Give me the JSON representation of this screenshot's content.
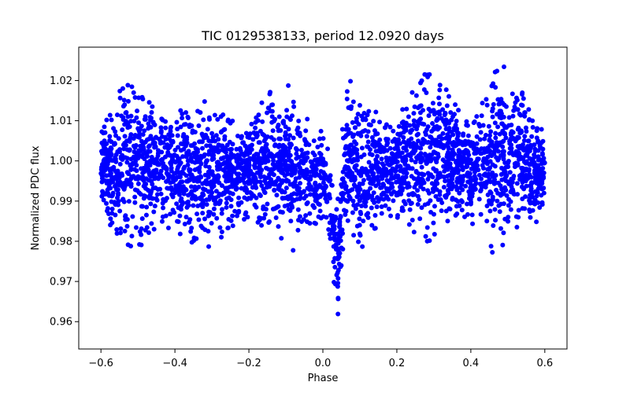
{
  "chart_data": {
    "type": "scatter",
    "title": "TIC 0129538133, period 12.0920 days",
    "xlabel": "Phase",
    "ylabel": "Normalized PDC flux",
    "xlim": [
      -0.66,
      0.66
    ],
    "ylim": [
      0.9532,
      1.0283
    ],
    "xticks": [
      -0.6,
      -0.4,
      -0.2,
      0.0,
      0.2,
      0.4,
      0.6
    ],
    "xtick_labels": [
      "−0.6",
      "−0.4",
      "−0.2",
      "0.0",
      "0.2",
      "0.4",
      "0.6"
    ],
    "yticks": [
      0.96,
      0.97,
      0.98,
      0.99,
      1.0,
      1.01,
      1.02
    ],
    "ytick_labels": [
      "0.96",
      "0.97",
      "0.98",
      "0.99",
      "1.00",
      "1.01",
      "1.02"
    ],
    "grid": false,
    "marker_color": "#0000ff",
    "series": [
      {
        "envelope": {
          "x": [
            -0.6,
            -0.58,
            -0.56,
            -0.54,
            -0.52,
            -0.5,
            -0.48,
            -0.46,
            -0.44,
            -0.42,
            -0.4,
            -0.38,
            -0.36,
            -0.34,
            -0.32,
            -0.3,
            -0.28,
            -0.26,
            -0.24,
            -0.22,
            -0.2,
            -0.18,
            -0.16,
            -0.14,
            -0.12,
            -0.1,
            -0.08,
            -0.06,
            -0.04,
            -0.02,
            0.0,
            0.02,
            0.04,
            0.06,
            0.08,
            0.1,
            0.12,
            0.14,
            0.16,
            0.18,
            0.2,
            0.22,
            0.24,
            0.26,
            0.28,
            0.3,
            0.32,
            0.34,
            0.36,
            0.38,
            0.4,
            0.42,
            0.44,
            0.46,
            0.48,
            0.5,
            0.52,
            0.54,
            0.56,
            0.58,
            0.6
          ],
          "y_low": [
            0.992,
            0.985,
            0.978,
            0.978,
            0.978,
            0.978,
            0.98,
            0.982,
            0.984,
            0.983,
            0.982,
            0.979,
            0.976,
            0.976,
            0.977,
            0.978,
            0.98,
            0.982,
            0.984,
            0.985,
            0.986,
            0.985,
            0.983,
            0.98,
            0.978,
            0.977,
            0.977,
            0.978,
            0.98,
            0.983,
            0.986,
            0.978,
            0.958,
            0.982,
            0.978,
            0.977,
            0.979,
            0.982,
            0.984,
            0.985,
            0.986,
            0.984,
            0.982,
            0.98,
            0.979,
            0.98,
            0.982,
            0.984,
            0.986,
            0.985,
            0.984,
            0.982,
            0.979,
            0.977,
            0.977,
            0.978,
            0.98,
            0.982,
            0.983,
            0.984,
            0.986
          ],
          "y_high": [
            1.007,
            1.012,
            1.016,
            1.019,
            1.025,
            1.022,
            1.02,
            1.017,
            1.015,
            1.014,
            1.013,
            1.013,
            1.014,
            1.016,
            1.015,
            1.014,
            1.013,
            1.011,
            1.01,
            1.009,
            1.008,
            1.013,
            1.016,
            1.018,
            1.019,
            1.02,
            1.017,
            1.014,
            1.011,
            1.009,
            1.008,
            1.003,
            0.99,
            1.018,
            1.021,
            1.02,
            1.018,
            1.015,
            1.013,
            1.012,
            1.012,
            1.015,
            1.018,
            1.021,
            1.022,
            1.022,
            1.021,
            1.018,
            1.015,
            1.012,
            1.01,
            1.014,
            1.018,
            1.022,
            1.025,
            1.022,
            1.02,
            1.018,
            1.015,
            1.012,
            1.008
          ]
        }
      }
    ]
  }
}
